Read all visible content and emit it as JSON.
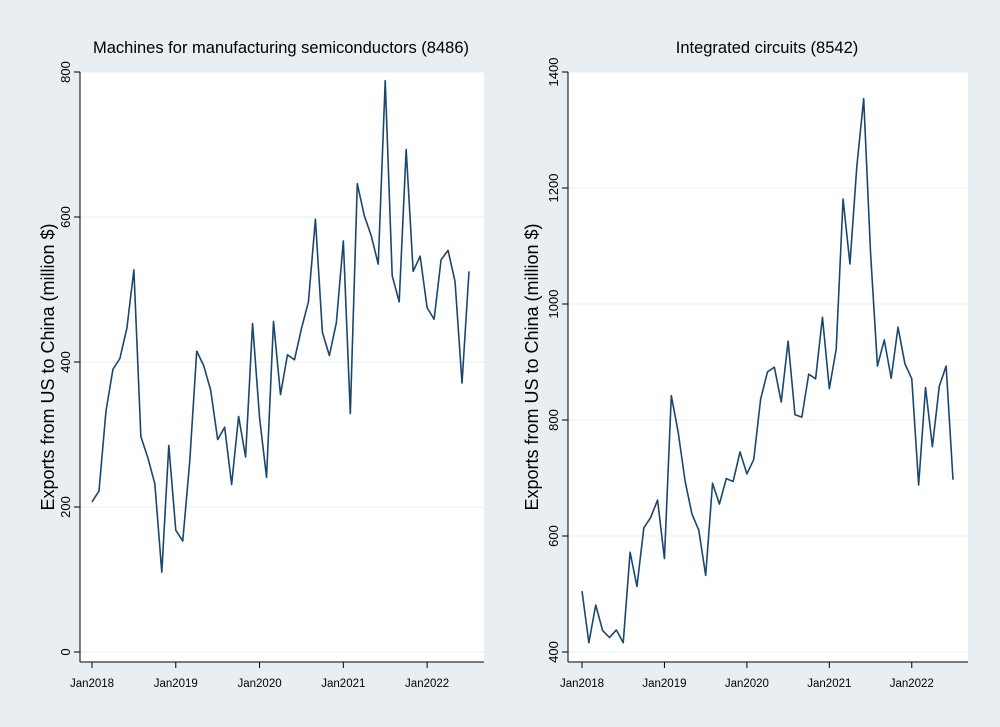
{
  "chart_data": [
    {
      "type": "line",
      "title": "Machines for manufacturing semiconductors (8486)",
      "xlabel": "",
      "ylabel": "Exports from US to China (million $)",
      "ylim": [
        0,
        800
      ],
      "yticks": [
        0,
        200,
        400,
        600,
        800
      ],
      "xlim": [
        "2018-01",
        "2022-07"
      ],
      "xticks": [
        "Jan2018",
        "Jan2019",
        "Jan2020",
        "Jan2021",
        "Jan2022"
      ],
      "grid": "horizontal",
      "line_color": "#1a476f",
      "x": [
        "2018-01",
        "2018-02",
        "2018-03",
        "2018-04",
        "2018-05",
        "2018-06",
        "2018-07",
        "2018-08",
        "2018-09",
        "2018-10",
        "2018-11",
        "2018-12",
        "2019-01",
        "2019-02",
        "2019-03",
        "2019-04",
        "2019-05",
        "2019-06",
        "2019-07",
        "2019-08",
        "2019-09",
        "2019-10",
        "2019-11",
        "2019-12",
        "2020-01",
        "2020-02",
        "2020-03",
        "2020-04",
        "2020-05",
        "2020-06",
        "2020-07",
        "2020-08",
        "2020-09",
        "2020-10",
        "2020-11",
        "2020-12",
        "2021-01",
        "2021-02",
        "2021-03",
        "2021-04",
        "2021-05",
        "2021-06",
        "2021-07",
        "2021-08",
        "2021-09",
        "2021-10",
        "2021-11",
        "2021-12",
        "2022-01",
        "2022-02",
        "2022-03",
        "2022-04",
        "2022-05",
        "2022-06",
        "2022-07"
      ],
      "values": [
        207,
        222,
        332,
        390,
        405,
        447,
        527,
        297,
        268,
        232,
        110,
        285,
        168,
        153,
        263,
        415,
        395,
        361,
        293,
        310,
        231,
        325,
        269,
        453,
        323,
        241,
        456,
        355,
        410,
        403,
        446,
        483,
        597,
        441,
        409,
        454,
        567,
        329,
        646,
        602,
        574,
        535,
        788,
        519,
        483,
        693,
        525,
        546,
        475,
        459,
        541,
        554,
        511,
        371,
        525
      ]
    },
    {
      "type": "line",
      "title": "Integrated circuits (8542)",
      "xlabel": "",
      "ylabel": "Exports from US to China (million $)",
      "ylim": [
        400,
        1400
      ],
      "yticks": [
        400,
        600,
        800,
        1000,
        1200,
        1400
      ],
      "xlim": [
        "2018-01",
        "2022-07"
      ],
      "xticks": [
        "Jan2018",
        "Jan2019",
        "Jan2020",
        "Jan2021",
        "Jan2022"
      ],
      "grid": "horizontal",
      "line_color": "#1a476f",
      "x": [
        "2018-01",
        "2018-02",
        "2018-03",
        "2018-04",
        "2018-05",
        "2018-06",
        "2018-07",
        "2018-08",
        "2018-09",
        "2018-10",
        "2018-11",
        "2018-12",
        "2019-01",
        "2019-02",
        "2019-03",
        "2019-04",
        "2019-05",
        "2019-06",
        "2019-07",
        "2019-08",
        "2019-09",
        "2019-10",
        "2019-11",
        "2019-12",
        "2020-01",
        "2020-02",
        "2020-03",
        "2020-04",
        "2020-05",
        "2020-06",
        "2020-07",
        "2020-08",
        "2020-09",
        "2020-10",
        "2020-11",
        "2020-12",
        "2021-01",
        "2021-02",
        "2021-03",
        "2021-04",
        "2021-05",
        "2021-06",
        "2021-07",
        "2021-08",
        "2021-09",
        "2021-10",
        "2021-11",
        "2021-12",
        "2022-01",
        "2022-02",
        "2022-03",
        "2022-04",
        "2022-05",
        "2022-06",
        "2022-07"
      ],
      "values": [
        505,
        416,
        481,
        437,
        425,
        438,
        416,
        572,
        513,
        614,
        632,
        662,
        561,
        842,
        779,
        695,
        638,
        610,
        532,
        691,
        655,
        699,
        694,
        745,
        707,
        732,
        836,
        883,
        891,
        831,
        936,
        809,
        805,
        879,
        871,
        977,
        854,
        922,
        1181,
        1069,
        1237,
        1354,
        1088,
        893,
        938,
        872,
        960,
        897,
        871,
        688,
        856,
        754,
        858,
        893,
        697
      ]
    }
  ]
}
